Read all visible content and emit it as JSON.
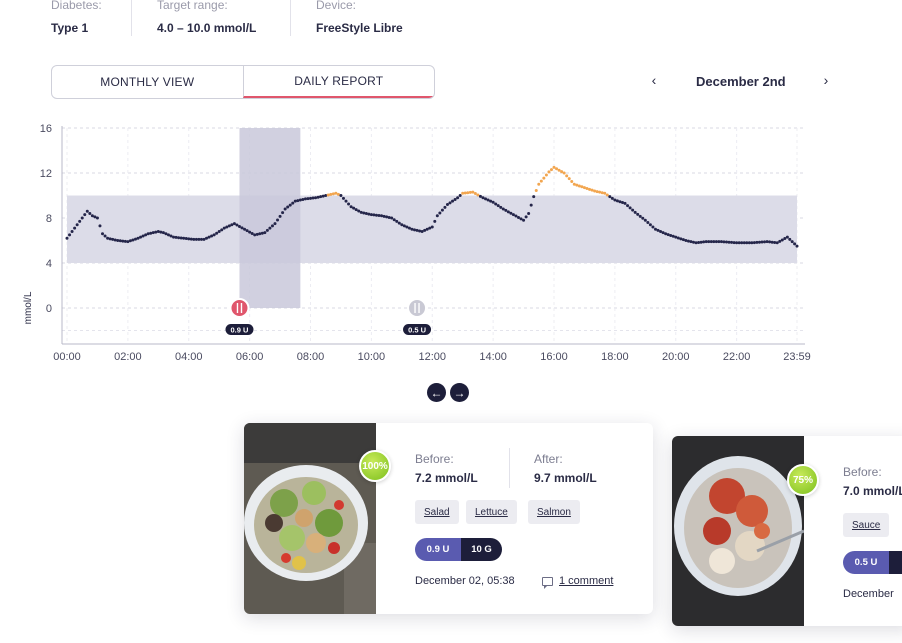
{
  "patient_info": {
    "diabetes_label": "Diabetes:",
    "diabetes_value": "Type 1",
    "target_label": "Target range:",
    "target_value": "4.0 – 10.0 mmol/L",
    "device_label": "Device:",
    "device_value": "FreeStyle Libre"
  },
  "view_toggle": {
    "monthly_label": "MONTHLY VIEW",
    "daily_label": "DAILY REPORT",
    "active": "daily"
  },
  "date_nav": {
    "prev_icon": "chevron-left-icon",
    "next_icon": "chevron-right-icon",
    "date_label": "December 2nd"
  },
  "chart_data": {
    "type": "scatter",
    "ylabel": "mmol/L",
    "ylim": [
      -3,
      16
    ],
    "yticks": [
      "16",
      "12",
      "8",
      "4",
      "0"
    ],
    "xticks": [
      "00:00",
      "02:00",
      "04:00",
      "06:00",
      "08:00",
      "10:00",
      "12:00",
      "14:00",
      "16:00",
      "18:00",
      "20:00",
      "22:00",
      "23:59"
    ],
    "target_range": [
      4,
      10
    ],
    "highlight_window": [
      "05:40",
      "07:40"
    ],
    "grid": true,
    "colors": {
      "in_range": "#25264a",
      "high": "#f2a650",
      "band": "#dcdce8",
      "window": "#c9c8da"
    },
    "series": [
      {
        "points": [
          [
            "00:00",
            6.2
          ],
          [
            "00:10",
            6.8
          ],
          [
            "00:20",
            7.4
          ],
          [
            "00:30",
            8.0
          ],
          [
            "00:40",
            8.6
          ],
          [
            "00:50",
            8.2
          ],
          [
            "01:00",
            8.0
          ],
          [
            "01:10",
            6.6
          ],
          [
            "01:20",
            6.2
          ],
          [
            "01:40",
            6.0
          ],
          [
            "02:00",
            5.9
          ],
          [
            "02:20",
            6.2
          ],
          [
            "02:40",
            6.6
          ],
          [
            "03:00",
            6.8
          ],
          [
            "03:10",
            6.7
          ],
          [
            "03:30",
            6.3
          ],
          [
            "03:50",
            6.2
          ],
          [
            "04:10",
            6.1
          ],
          [
            "04:30",
            6.1
          ],
          [
            "04:50",
            6.5
          ],
          [
            "05:10",
            7.1
          ],
          [
            "05:30",
            7.5
          ],
          [
            "05:50",
            7.0
          ],
          [
            "06:10",
            6.5
          ],
          [
            "06:30",
            6.7
          ],
          [
            "06:50",
            7.5
          ],
          [
            "07:10",
            8.8
          ],
          [
            "07:30",
            9.5
          ],
          [
            "07:50",
            9.7
          ],
          [
            "08:10",
            9.8
          ],
          [
            "08:30",
            10.0
          ],
          [
            "08:50",
            10.2
          ],
          [
            "09:00",
            10.0
          ],
          [
            "09:20",
            9.0
          ],
          [
            "09:40",
            8.5
          ],
          [
            "10:00",
            8.3
          ],
          [
            "10:20",
            8.2
          ],
          [
            "10:40",
            8.0
          ],
          [
            "11:00",
            7.4
          ],
          [
            "11:20",
            7.0
          ],
          [
            "11:40",
            6.8
          ],
          [
            "12:00",
            7.2
          ],
          [
            "12:10",
            8.2
          ],
          [
            "12:30",
            9.2
          ],
          [
            "12:50",
            9.8
          ],
          [
            "13:00",
            10.2
          ],
          [
            "13:20",
            10.3
          ],
          [
            "13:40",
            9.8
          ],
          [
            "14:00",
            9.4
          ],
          [
            "14:20",
            8.8
          ],
          [
            "14:40",
            8.3
          ],
          [
            "15:00",
            7.8
          ],
          [
            "15:10",
            8.4
          ],
          [
            "15:20",
            9.9
          ],
          [
            "15:30",
            11.0
          ],
          [
            "15:50",
            12.1
          ],
          [
            "16:00",
            12.5
          ],
          [
            "16:20",
            12.0
          ],
          [
            "16:40",
            11.0
          ],
          [
            "17:00",
            10.7
          ],
          [
            "17:20",
            10.4
          ],
          [
            "17:40",
            10.2
          ],
          [
            "18:00",
            9.6
          ],
          [
            "18:20",
            9.3
          ],
          [
            "18:40",
            8.5
          ],
          [
            "19:00",
            7.8
          ],
          [
            "19:20",
            7.0
          ],
          [
            "19:40",
            6.6
          ],
          [
            "20:00",
            6.3
          ],
          [
            "20:20",
            6.0
          ],
          [
            "20:40",
            5.8
          ],
          [
            "21:00",
            5.9
          ],
          [
            "21:30",
            5.9
          ],
          [
            "22:00",
            5.8
          ],
          [
            "22:30",
            5.8
          ],
          [
            "23:00",
            5.9
          ],
          [
            "23:20",
            5.8
          ],
          [
            "23:40",
            6.3
          ],
          [
            "23:59",
            5.5
          ]
        ]
      }
    ],
    "meal_markers": [
      {
        "time": "05:40",
        "insulin": "0.9 U",
        "active": true
      },
      {
        "time": "11:30",
        "insulin": "0.5 U",
        "active": false
      }
    ]
  },
  "carousel": {
    "prev_icon": "arrow-left-icon",
    "next_icon": "arrow-right-icon"
  },
  "meals": [
    {
      "score": "100%",
      "before_label": "Before:",
      "before_value": "7.2 mmol/L",
      "after_label": "After:",
      "after_value": "9.7 mmol/L",
      "tags": [
        "Salad",
        "Lettuce",
        "Salmon"
      ],
      "insulin": "0.9 U",
      "carbs": "10 G",
      "timestamp": "December 02, 05:38",
      "comment_label": "1 comment"
    },
    {
      "score": "75%",
      "before_label": "Before:",
      "before_value": "7.0 mmol/L",
      "tags": [
        "Sauce"
      ],
      "insulin": "0.5 U",
      "timestamp": "December"
    }
  ]
}
